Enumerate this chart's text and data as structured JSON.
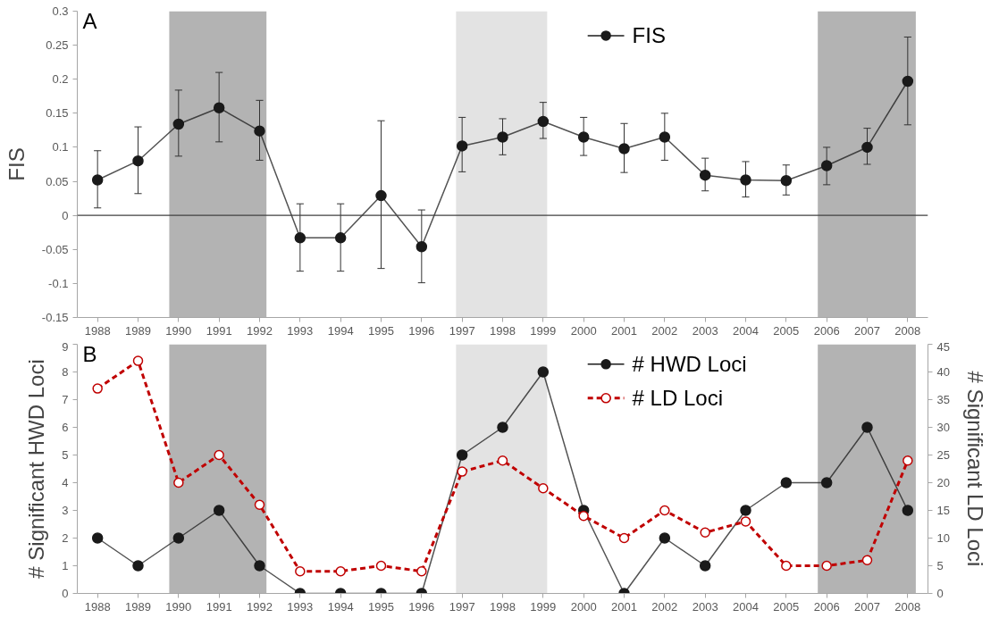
{
  "chart_data": [
    {
      "type": "line",
      "ylabel": "FIS",
      "annotations": [
        "A"
      ],
      "x": [
        1988,
        1989,
        1990,
        1991,
        1992,
        1993,
        1994,
        1995,
        1996,
        1997,
        1998,
        1999,
        2000,
        2001,
        2002,
        2003,
        2004,
        2005,
        2006,
        2007,
        2008
      ],
      "xlim": [
        1987.5,
        2008.5
      ],
      "xticks": [
        1988,
        1989,
        1990,
        1991,
        1992,
        1993,
        1994,
        1995,
        1996,
        1997,
        1998,
        1999,
        2000,
        2001,
        2002,
        2003,
        2004,
        2005,
        2006,
        2007,
        2008
      ],
      "ylim": [
        -0.15,
        0.3
      ],
      "yticks": [
        -0.15,
        -0.1,
        -0.05,
        0,
        0.05,
        0.1,
        0.15,
        0.2,
        0.25,
        0.3
      ],
      "series": [
        {
          "name": "FIS",
          "color": "#1a1a1a",
          "line_style": "solid",
          "values": [
            0.052,
            0.08,
            0.134,
            0.158,
            0.124,
            -0.033,
            -0.033,
            0.029,
            -0.046,
            0.102,
            0.115,
            0.138,
            0.115,
            0.098,
            0.115,
            0.059,
            0.052,
            0.051,
            0.073,
            0.1,
            0.197
          ],
          "errors": [
            [
              0.011,
              0.095
            ],
            [
              0.032,
              0.13
            ],
            [
              0.087,
              0.184
            ],
            [
              0.108,
              0.21
            ],
            [
              0.081,
              0.169
            ],
            [
              -0.082,
              0.017
            ],
            [
              -0.082,
              0.017
            ],
            [
              -0.078,
              0.139
            ],
            [
              -0.099,
              0.008
            ],
            [
              0.064,
              0.144
            ],
            [
              0.089,
              0.142
            ],
            [
              0.113,
              0.166
            ],
            [
              0.088,
              0.144
            ],
            [
              0.063,
              0.135
            ],
            [
              0.081,
              0.15
            ],
            [
              0.036,
              0.084
            ],
            [
              0.027,
              0.079
            ],
            [
              0.03,
              0.074
            ],
            [
              0.045,
              0.1
            ],
            [
              0.075,
              0.128
            ],
            [
              0.133,
              0.262
            ]
          ]
        }
      ],
      "ref_lines": [
        {
          "axis": "y",
          "value": 0,
          "color": "#404040"
        }
      ],
      "bands": [
        {
          "axis": "x",
          "from": 1989.77,
          "to": 1992.17,
          "color": "#b3b3b3"
        },
        {
          "axis": "x",
          "from": 1996.85,
          "to": 1999.1,
          "color": "#e3e3e3"
        },
        {
          "axis": "x",
          "from": 2005.78,
          "to": 2008.2,
          "color": "#b3b3b3"
        }
      ],
      "marker": "circle",
      "legend": "top",
      "grid": false
    },
    {
      "type": "line",
      "ylabel": "# Significant HWD Loci",
      "y2label": "# Significant LD Loci",
      "annotations": [
        "B"
      ],
      "x": [
        1988,
        1989,
        1990,
        1991,
        1992,
        1993,
        1994,
        1995,
        1996,
        1997,
        1998,
        1999,
        2000,
        2001,
        2002,
        2003,
        2004,
        2005,
        2006,
        2007,
        2008
      ],
      "xlim": [
        1987.5,
        2008.5
      ],
      "xticks": [
        1988,
        1989,
        1990,
        1991,
        1992,
        1993,
        1994,
        1995,
        1996,
        1997,
        1998,
        1999,
        2000,
        2001,
        2002,
        2003,
        2004,
        2005,
        2006,
        2007,
        2008
      ],
      "ylim": [
        0,
        9
      ],
      "yticks": [
        0,
        1,
        2,
        3,
        4,
        5,
        6,
        7,
        8,
        9
      ],
      "y2lim": [
        0,
        45
      ],
      "y2ticks": [
        0,
        5,
        10,
        15,
        20,
        25,
        30,
        35,
        40,
        45
      ],
      "series": [
        {
          "name": "# HWD Loci",
          "color": "#1a1a1a",
          "line_style": "solid",
          "values": [
            2,
            1,
            2,
            3,
            1,
            0,
            0,
            0,
            0,
            5,
            6,
            8,
            3,
            0,
            2,
            1,
            3,
            4,
            4,
            6,
            3
          ]
        },
        {
          "name": "# LD Loci",
          "color": "#c00000",
          "line_style": "dashed",
          "axis": "y2",
          "values": [
            37,
            42,
            20,
            25,
            16,
            4,
            4,
            5,
            4,
            22,
            24,
            19,
            14,
            10,
            15,
            11,
            13,
            5,
            5,
            6,
            24
          ]
        }
      ],
      "bands": [
        {
          "axis": "x",
          "from": 1989.77,
          "to": 1992.17,
          "color": "#b3b3b3"
        },
        {
          "axis": "x",
          "from": 1996.85,
          "to": 1999.1,
          "color": "#e3e3e3"
        },
        {
          "axis": "x",
          "from": 2005.78,
          "to": 2008.2,
          "color": "#b3b3b3"
        }
      ],
      "marker": "circle",
      "legend": "top",
      "grid": false
    }
  ]
}
